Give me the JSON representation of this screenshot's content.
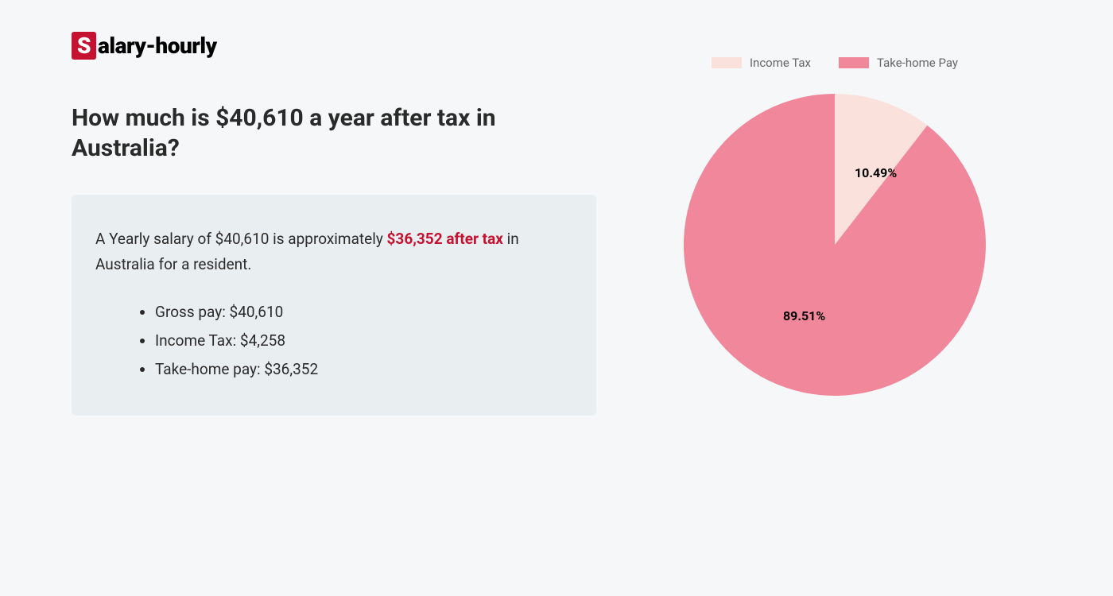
{
  "logo": {
    "s_char": "S",
    "rest": "alary-hourly"
  },
  "title": "How much is $40,610 a year after tax in Australia?",
  "info_box": {
    "text_before": "A Yearly salary of $40,610 is approximately ",
    "highlight": "$36,352 after tax",
    "text_after": " in Australia for a resident.",
    "highlight_color": "#c41230",
    "bullets": [
      "Gross pay: $40,610",
      "Income Tax: $4,258",
      "Take-home pay: $36,352"
    ],
    "background_color": "#e9eff1"
  },
  "chart": {
    "type": "pie",
    "legend": [
      {
        "label": "Income Tax",
        "color": "#fbe1dc"
      },
      {
        "label": "Take-home Pay",
        "color": "#f0879b"
      }
    ],
    "slices": [
      {
        "name": "Income Tax",
        "value": 10.49,
        "color": "#fbe1dc",
        "label": "10.49%"
      },
      {
        "name": "Take-home Pay",
        "value": 89.51,
        "color": "#f0879b",
        "label": "89.51%"
      }
    ],
    "radius": 190,
    "label_fontsize": 16,
    "label_fontweight": 700,
    "label_color": "#000000",
    "background_color": "#f5f7f8"
  },
  "colors": {
    "page_background": "#f5f7f8",
    "text_primary": "#2a2a2a",
    "legend_text": "#666666"
  }
}
